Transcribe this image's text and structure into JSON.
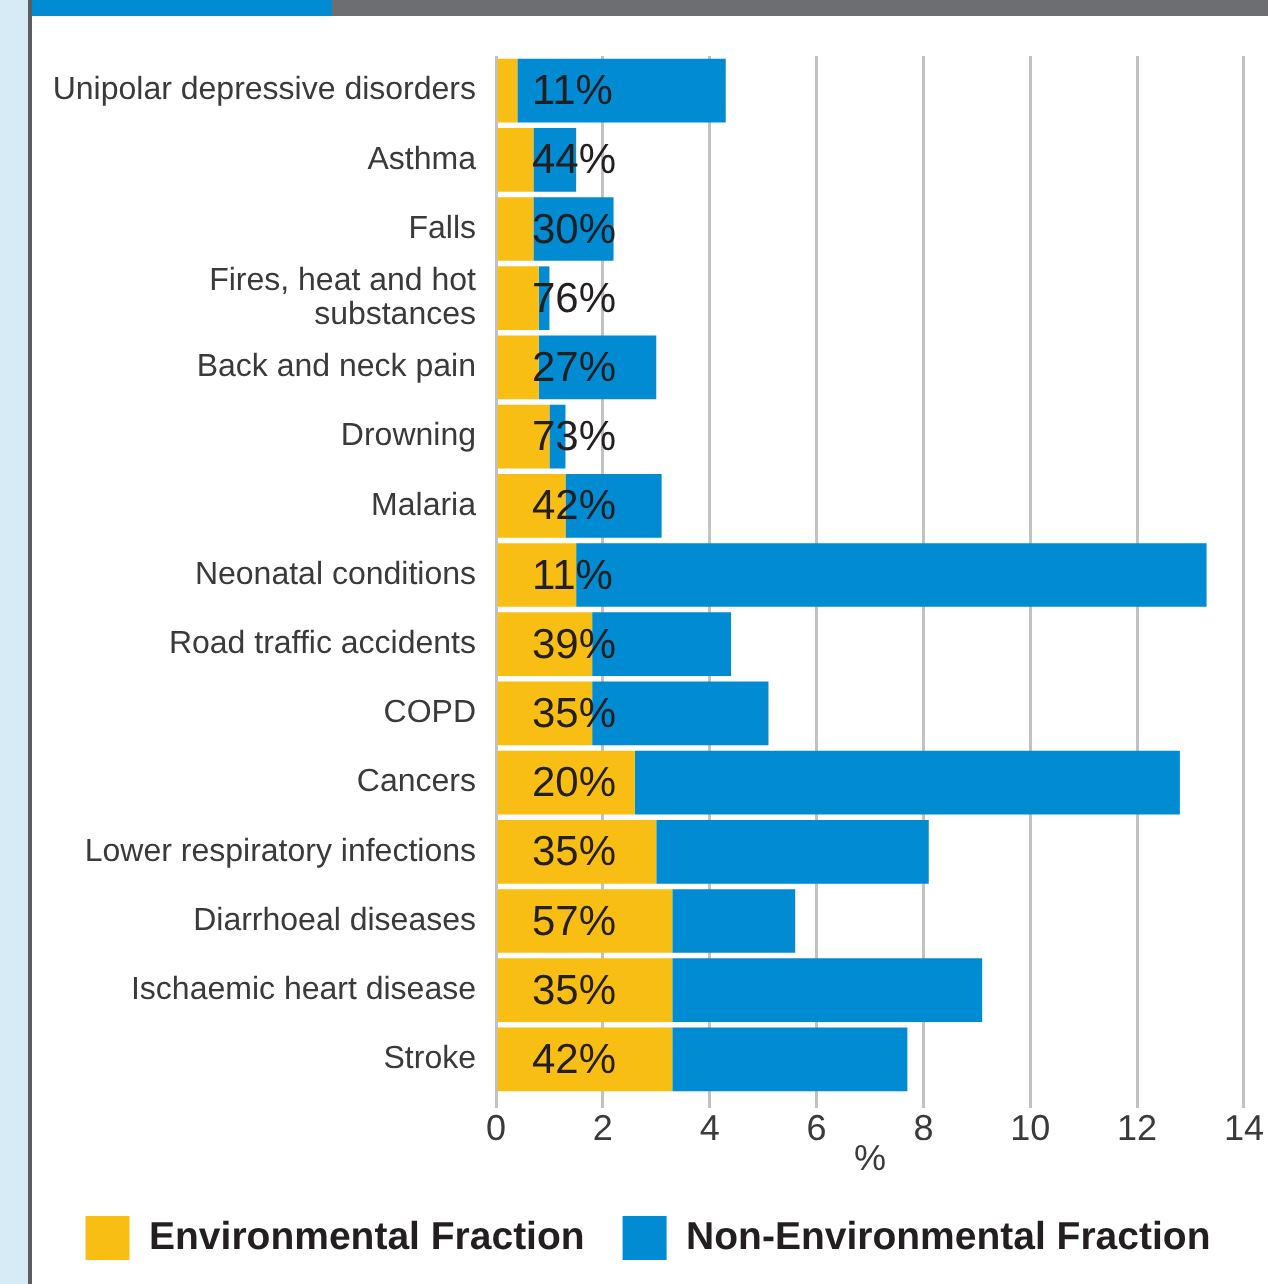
{
  "chart_data": {
    "type": "bar",
    "orientation": "horizontal",
    "stacked": true,
    "categories": [
      "Unipolar depressive disorders",
      "Asthma",
      "Falls",
      "Fires, heat and hot substances",
      "Back and neck pain",
      "Drowning",
      "Malaria",
      "Neonatal conditions",
      "Road traffic accidents",
      "COPD",
      "Cancers",
      "Lower respiratory infections",
      "Diarrhoeal diseases",
      "Ischaemic heart disease",
      "Stroke"
    ],
    "series": [
      {
        "name": "Environmental Fraction",
        "color": "#f9be14",
        "values": [
          0.4,
          0.7,
          0.7,
          0.8,
          0.8,
          1.0,
          1.3,
          1.5,
          1.8,
          1.8,
          2.6,
          3.0,
          3.3,
          3.3,
          3.3
        ]
      },
      {
        "name": "Non-Environmental Fraction",
        "color": "#008bd2",
        "values": [
          3.9,
          0.8,
          1.5,
          0.2,
          2.2,
          0.3,
          1.8,
          11.8,
          2.6,
          3.3,
          10.2,
          5.1,
          2.3,
          5.8,
          4.4
        ]
      }
    ],
    "annotations": [
      {
        "text": "11%",
        "y": "Unipolar depressive disorders"
      },
      {
        "text": "44%",
        "y": "Asthma"
      },
      {
        "text": "30%",
        "y": "Falls"
      },
      {
        "text": "76%",
        "y": "Fires, heat and hot substances"
      },
      {
        "text": "27%",
        "y": "Back and neck pain"
      },
      {
        "text": "73%",
        "y": "Drowning"
      },
      {
        "text": "42%",
        "y": "Malaria"
      },
      {
        "text": "11%",
        "y": "Neonatal conditions"
      },
      {
        "text": "39%",
        "y": "Road traffic accidents"
      },
      {
        "text": "35%",
        "y": "COPD"
      },
      {
        "text": "20%",
        "y": "Cancers"
      },
      {
        "text": "35%",
        "y": "Lower respiratory infections"
      },
      {
        "text": "57%",
        "y": "Diarrhoeal diseases"
      },
      {
        "text": "35%",
        "y": "Ischaemic heart disease"
      },
      {
        "text": "42%",
        "y": "Stroke"
      }
    ],
    "xlabel": "%",
    "xlim": [
      0,
      14
    ],
    "xticks": [
      0,
      2,
      4,
      6,
      8,
      10,
      12,
      14
    ],
    "grid": "x",
    "legend": "bottom"
  }
}
